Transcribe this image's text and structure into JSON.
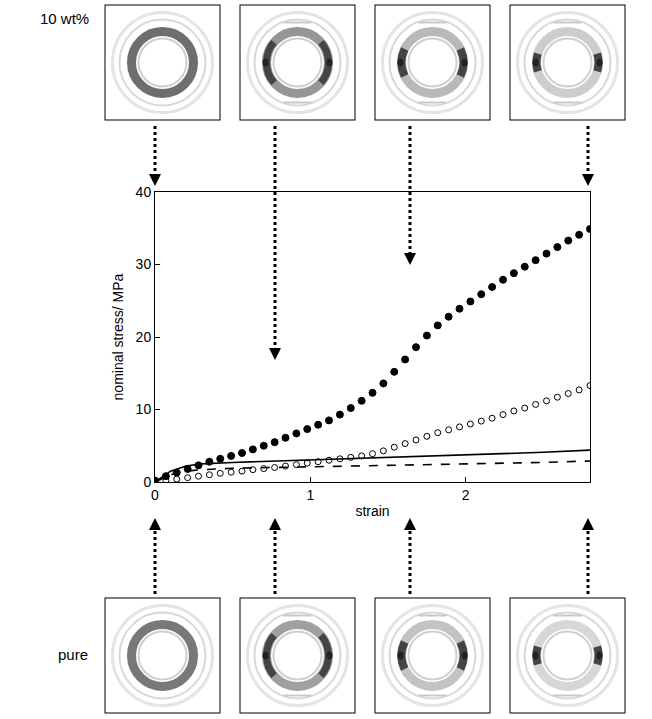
{
  "chart_data": {
    "type": "scatter",
    "x_label": "strain",
    "y_label": "nominal stress/ MPa",
    "xlim": [
      0,
      2.8
    ],
    "ylim": [
      0,
      40
    ],
    "xticks": [
      0,
      1,
      2
    ],
    "yticks": [
      0,
      10,
      20,
      30,
      40
    ],
    "grid": false,
    "annotations": [
      "10 wt%",
      "pure"
    ],
    "series": [
      {
        "type": "scatter",
        "color": "#000000",
        "marker": "circle",
        "line_style": "none",
        "x": [
          0,
          0.07,
          0.14,
          0.21,
          0.28,
          0.35,
          0.42,
          0.49,
          0.56,
          0.63,
          0.7,
          0.77,
          0.84,
          0.91,
          0.98,
          1.05,
          1.12,
          1.19,
          1.26,
          1.33,
          1.4,
          1.47,
          1.54,
          1.61,
          1.68,
          1.75,
          1.82,
          1.89,
          1.96,
          2.03,
          2.1,
          2.17,
          2.24,
          2.31,
          2.38,
          2.45,
          2.52,
          2.59,
          2.66,
          2.73,
          2.8
        ],
        "values": [
          0.2,
          0.8,
          1.3,
          1.8,
          2.3,
          2.8,
          3.2,
          3.6,
          4.0,
          4.5,
          5.0,
          5.5,
          6.1,
          6.7,
          7.3,
          7.9,
          8.5,
          9.3,
          10.2,
          11.2,
          12.3,
          13.6,
          15.2,
          16.9,
          18.6,
          20.2,
          21.6,
          22.8,
          23.9,
          24.9,
          25.9,
          26.9,
          27.9,
          28.8,
          29.7,
          30.6,
          31.5,
          32.4,
          33.3,
          34.1,
          34.9
        ]
      },
      {
        "type": "scatter",
        "color": "#000000",
        "marker": "circle-open",
        "line_style": "none",
        "x": [
          0,
          0.07,
          0.14,
          0.21,
          0.28,
          0.35,
          0.42,
          0.49,
          0.56,
          0.63,
          0.7,
          0.77,
          0.84,
          0.91,
          0.98,
          1.05,
          1.12,
          1.19,
          1.26,
          1.33,
          1.4,
          1.47,
          1.54,
          1.61,
          1.68,
          1.75,
          1.82,
          1.89,
          1.96,
          2.03,
          2.1,
          2.17,
          2.24,
          2.31,
          2.38,
          2.45,
          2.52,
          2.59,
          2.66,
          2.73,
          2.8
        ],
        "values": [
          0,
          0.2,
          0.4,
          0.6,
          0.8,
          1.0,
          1.2,
          1.35,
          1.5,
          1.7,
          1.85,
          2.0,
          2.2,
          2.4,
          2.6,
          2.8,
          3.0,
          3.2,
          3.4,
          3.6,
          3.9,
          4.3,
          4.8,
          5.3,
          5.8,
          6.3,
          6.8,
          7.2,
          7.6,
          8.0,
          8.4,
          8.8,
          9.3,
          9.8,
          10.2,
          10.7,
          11.2,
          11.7,
          12.2,
          12.7,
          13.3
        ]
      },
      {
        "type": "line",
        "color": "#000000",
        "line_style": "solid",
        "x": [
          0,
          0.1,
          0.2,
          0.3,
          0.5,
          0.8,
          1.0,
          1.5,
          2.0,
          2.5,
          2.8
        ],
        "values": [
          0,
          1.5,
          2.2,
          2.5,
          2.7,
          2.9,
          3.0,
          3.4,
          3.7,
          4.1,
          4.4
        ]
      },
      {
        "type": "line",
        "color": "#000000",
        "line_style": "dashed",
        "x": [
          0,
          0.1,
          0.2,
          0.3,
          0.5,
          0.8,
          1.0,
          1.5,
          2.0,
          2.5,
          2.8
        ],
        "values": [
          0,
          1.0,
          1.5,
          1.7,
          1.9,
          2.0,
          2.1,
          2.3,
          2.5,
          2.7,
          2.9
        ]
      }
    ]
  }
}
